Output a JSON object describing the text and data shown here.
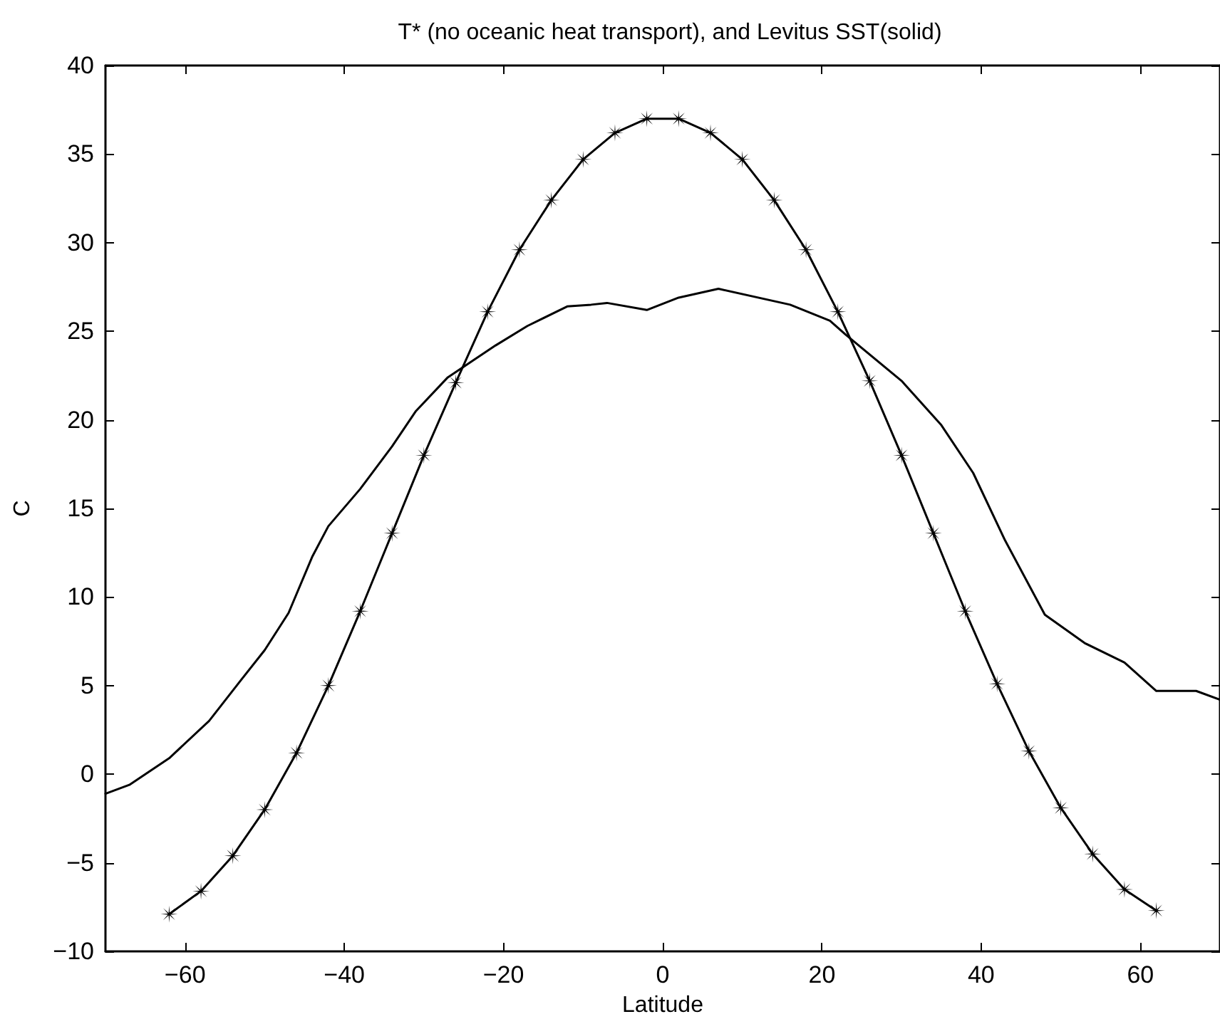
{
  "chart_data": {
    "type": "line",
    "title": "T* (no oceanic heat transport), and Levitus SST(solid)",
    "xlabel": "Latitude",
    "ylabel": "C",
    "series": [
      {
        "color": "#000000",
        "marker": "star",
        "x": [
          -62,
          -58,
          -54,
          -50,
          -46,
          -42,
          -38,
          -34,
          -30,
          -26,
          -22,
          -18,
          -14,
          -10,
          -6,
          -2,
          2,
          6,
          10,
          14,
          18,
          22,
          26,
          30,
          34,
          38,
          42,
          46,
          50,
          54,
          58,
          62
        ],
        "values": [
          -7.9,
          -6.6,
          -4.6,
          -2.0,
          1.2,
          5.0,
          9.2,
          13.6,
          18.0,
          22.1,
          26.1,
          29.6,
          32.4,
          34.7,
          36.2,
          37.0,
          37.0,
          36.2,
          34.7,
          32.4,
          29.6,
          26.1,
          22.2,
          18.0,
          13.6,
          9.2,
          5.1,
          1.3,
          -1.9,
          -4.5,
          -6.5,
          -7.7
        ]
      },
      {
        "color": "#000000",
        "marker": "none",
        "x": [
          -70,
          -67,
          -62,
          -57,
          -53,
          -50,
          -47,
          -44,
          -42,
          -38,
          -34,
          -31,
          -27,
          -21,
          -17,
          -12,
          -9,
          -7,
          -2,
          2,
          7,
          16,
          21,
          23,
          30,
          35,
          39,
          43,
          48,
          53,
          58,
          62,
          67,
          70
        ],
        "values": [
          -1.1,
          -0.6,
          0.9,
          3.0,
          5.3,
          7.0,
          9.1,
          12.3,
          14.0,
          16.1,
          18.5,
          20.5,
          22.4,
          24.2,
          25.3,
          26.4,
          26.5,
          26.6,
          26.2,
          26.9,
          27.4,
          26.5,
          25.6,
          24.8,
          22.2,
          19.7,
          17.0,
          13.2,
          9.0,
          7.4,
          6.3,
          4.7,
          4.7,
          4.2
        ]
      }
    ],
    "xlim": [
      -70,
      70
    ],
    "xticks": [
      -60,
      -40,
      -20,
      0,
      20,
      40,
      60
    ],
    "ylim": [
      -10,
      40
    ],
    "yticks": [
      -10,
      -5,
      0,
      5,
      10,
      15,
      20,
      25,
      30,
      35,
      40
    ],
    "grid": false,
    "line_style": "solid"
  }
}
